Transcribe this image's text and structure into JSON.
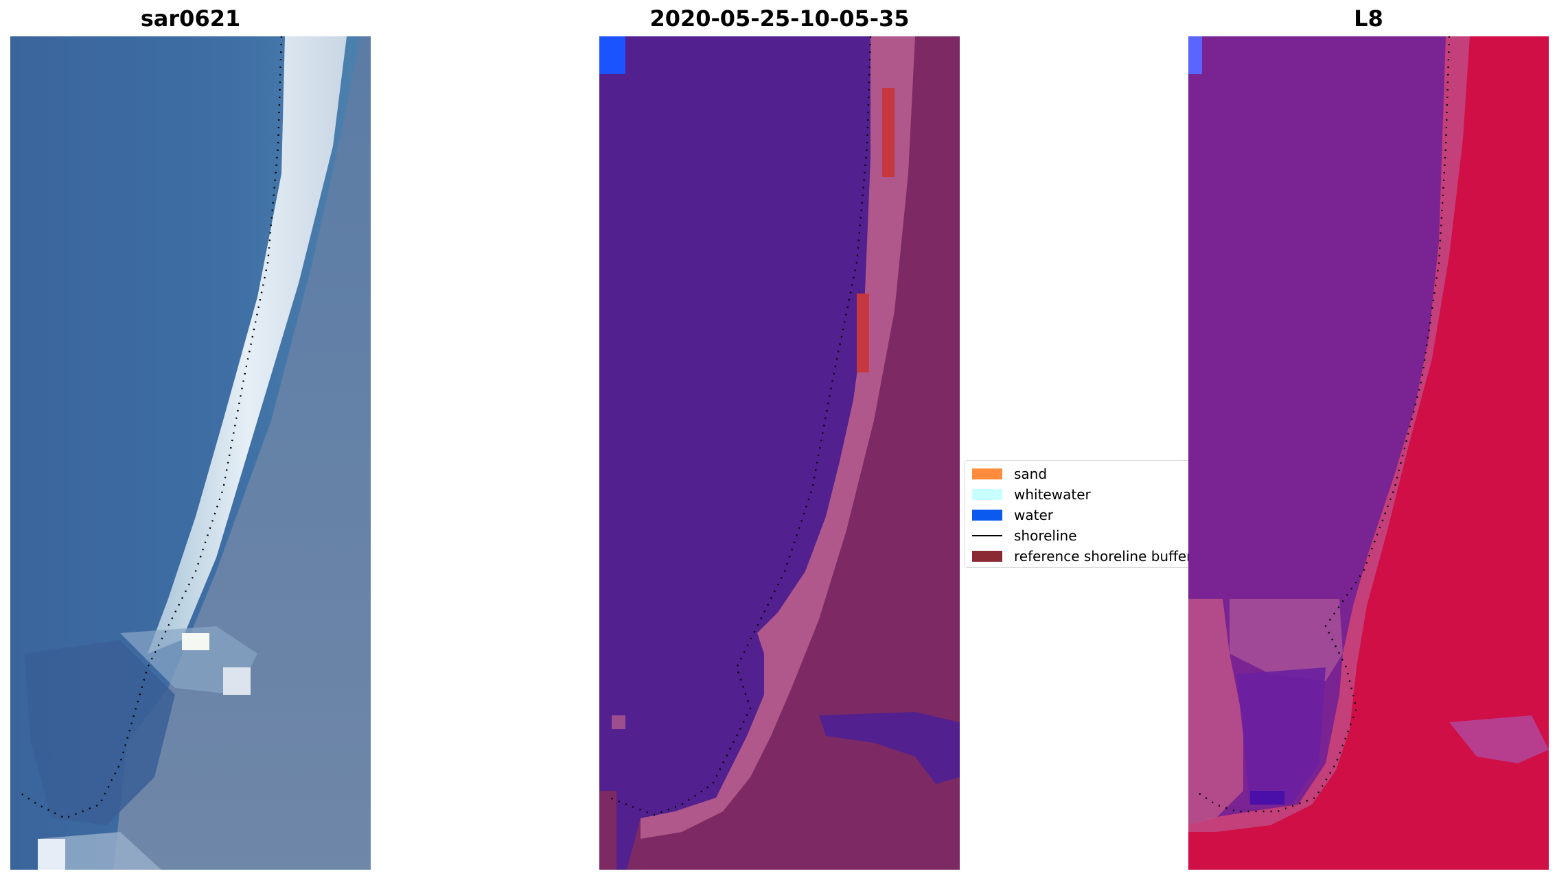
{
  "panels": {
    "sar": {
      "title": "sar0621"
    },
    "classified": {
      "title": "2020-05-25-10-05-35"
    },
    "l8": {
      "title": "L8"
    }
  },
  "legend": {
    "items": [
      {
        "label": "sand",
        "color": "#ff8c3c",
        "kind": "patch"
      },
      {
        "label": "whitewater",
        "color": "#c8ffff",
        "kind": "patch"
      },
      {
        "label": "water",
        "color": "#0b5af0",
        "kind": "patch"
      },
      {
        "label": "shoreline",
        "color": "#000000",
        "kind": "line"
      },
      {
        "label": "reference shoreline buffer",
        "color": "#8b2a33",
        "kind": "patch"
      }
    ]
  },
  "colors": {
    "ocean_rgb": "#3c6aa0",
    "surf": "#dde8f2",
    "land_rgb": "#5d7ea4",
    "classified_water": "#52208f",
    "classified_land": "#7d2a64",
    "classified_land_light": "#b86093",
    "classified_red": "#c5383f",
    "classified_blue": "#1b53ff",
    "l8_water": "#7a2392",
    "l8_land": "#cf0f45",
    "l8_land_pink": "#c2467f",
    "l8_blue": "#5a64ff"
  }
}
